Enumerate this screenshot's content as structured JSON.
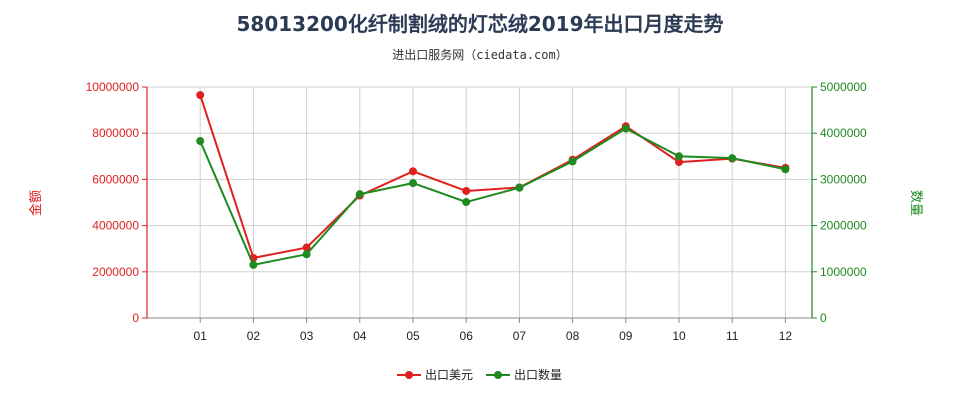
{
  "chart_data": {
    "type": "line",
    "title": "58013200化纤制割绒的灯芯绒2019年出口月度走势",
    "subtitle": "进出口服务网（ciedata.com）",
    "categories": [
      "01",
      "02",
      "03",
      "04",
      "05",
      "06",
      "07",
      "08",
      "09",
      "10",
      "11",
      "12"
    ],
    "y_left": {
      "label": "金额",
      "lim": [
        0,
        10000000
      ],
      "ticks": [
        "0",
        "2000000",
        "4000000",
        "6000000",
        "8000000",
        "10000000"
      ],
      "color": "#e02020"
    },
    "y_right": {
      "label": "数量",
      "lim": [
        0,
        5000000
      ],
      "ticks": [
        "0",
        "1000000",
        "2000000",
        "3000000",
        "4000000",
        "5000000"
      ],
      "color": "#1f8a1f"
    },
    "series": [
      {
        "name": "出口美元",
        "axis": "left",
        "color": "#e02020",
        "values": [
          9650000,
          2600000,
          3050000,
          5300000,
          6350000,
          5500000,
          5650000,
          6850000,
          8300000,
          6750000,
          6900000,
          6500000
        ]
      },
      {
        "name": "出口数量",
        "axis": "right",
        "color": "#1f8a1f",
        "values": [
          3830000,
          1150000,
          1380000,
          2680000,
          2920000,
          2510000,
          2820000,
          3390000,
          4100000,
          3500000,
          3460000,
          3220000
        ]
      }
    ],
    "grid": true,
    "legend_position": "bottom-center"
  }
}
